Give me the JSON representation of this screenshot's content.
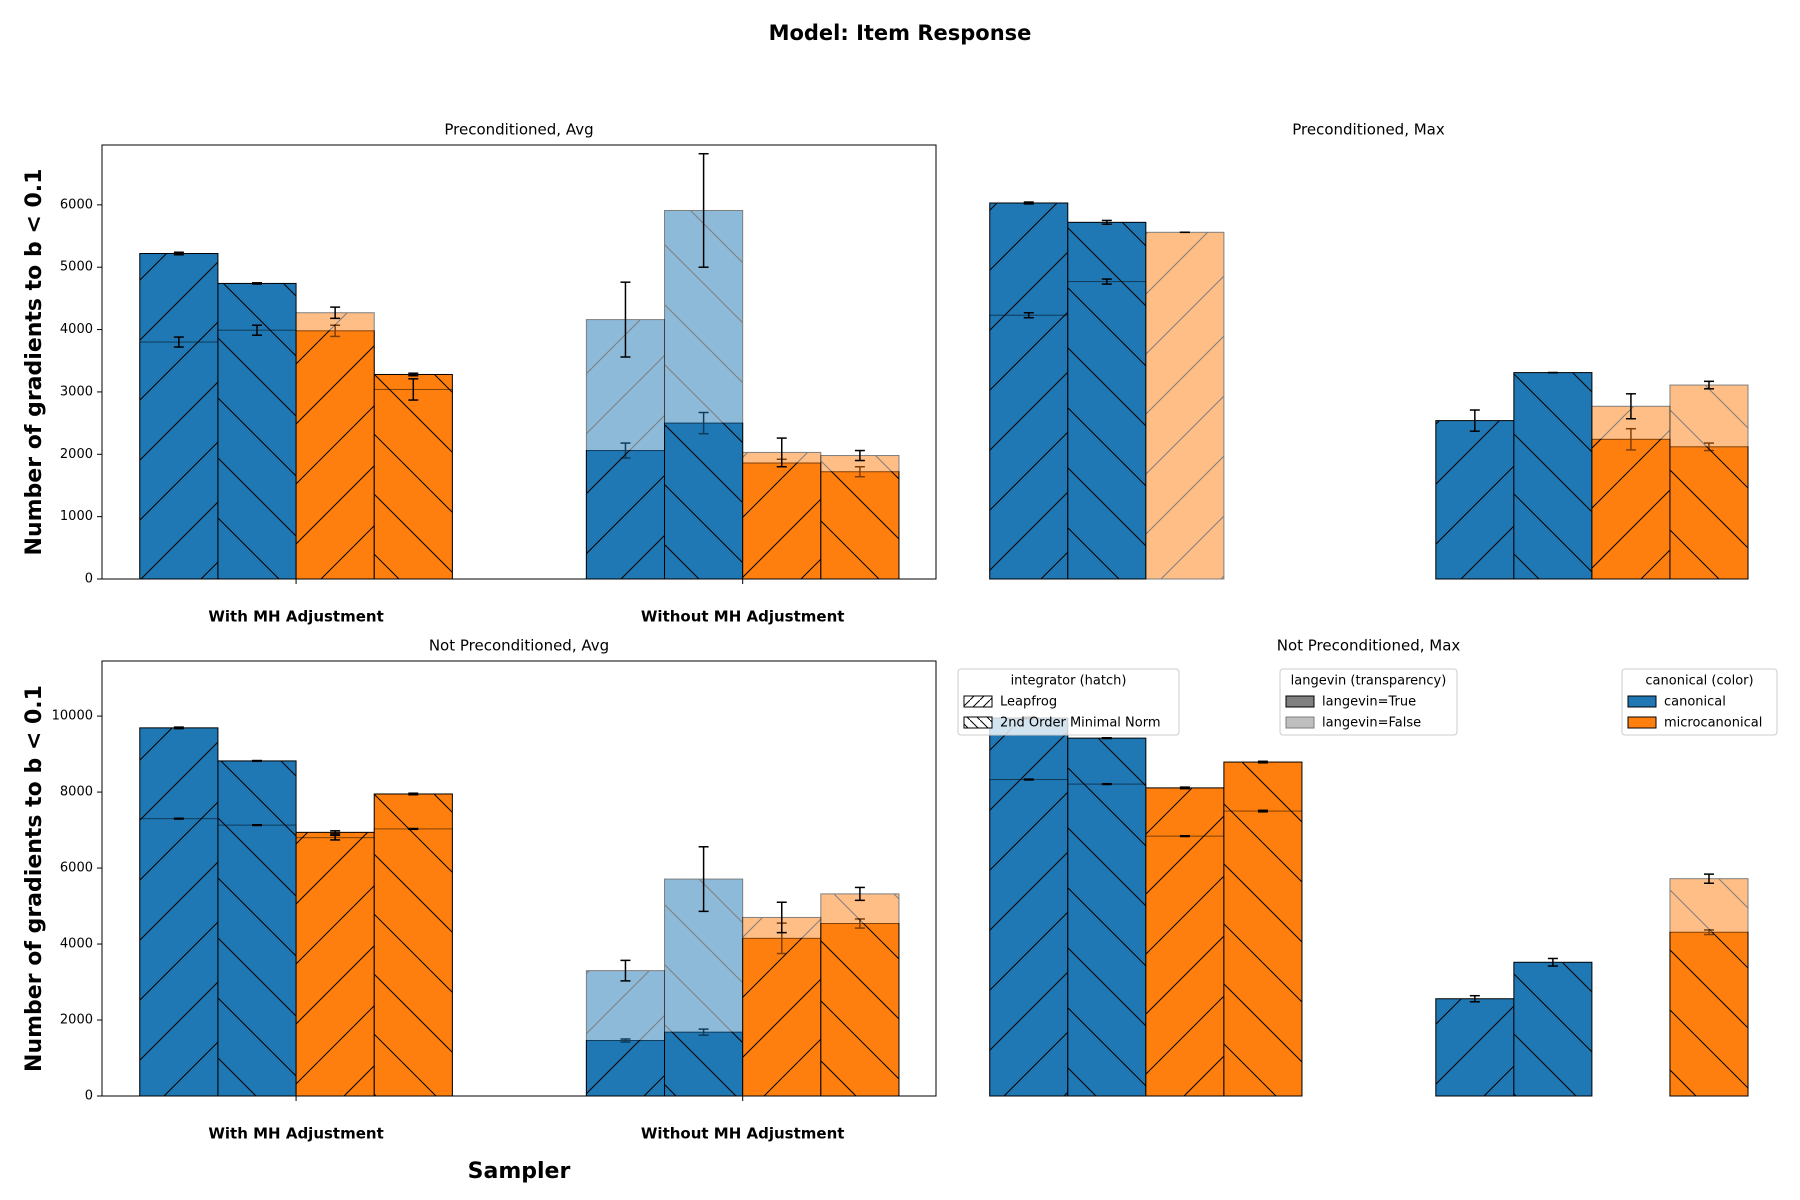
{
  "title": "Model: Item Response",
  "chart_data": [
    {
      "type": "bar",
      "title": "Preconditioned, Avg",
      "ylabel": "Number of gradients to b < 0.1",
      "axis": true,
      "categories": [
        "With MH Adjustment",
        "Without MH Adjustment"
      ],
      "ylim": [
        0,
        6960
      ],
      "yticks": [
        0,
        1000,
        2000,
        3000,
        4000,
        5000,
        6000
      ],
      "series": [
        {
          "color": "#1f77b4",
          "hatch": "/",
          "alpha": 1,
          "values": [
            5220,
            2060
          ],
          "errors": [
            20,
            120
          ]
        },
        {
          "color": "#1f77b4",
          "hatch": "\\",
          "alpha": 1,
          "values": [
            4740,
            2500
          ],
          "errors": [
            10,
            170
          ]
        },
        {
          "color": "#ff7f0e",
          "hatch": "/",
          "alpha": 1,
          "values": [
            3980,
            1860
          ],
          "errors": [
            90,
            60
          ]
        },
        {
          "color": "#ff7f0e",
          "hatch": "\\",
          "alpha": 1,
          "values": [
            3280,
            1720
          ],
          "errors": [
            20,
            80
          ]
        },
        {
          "color": "#1f77b4",
          "hatch": "/",
          "alpha": 0.5,
          "values": [
            3800,
            4160
          ],
          "errors": [
            80,
            600
          ]
        },
        {
          "color": "#1f77b4",
          "hatch": "\\",
          "alpha": 0.5,
          "values": [
            3990,
            5910
          ],
          "errors": [
            80,
            910
          ]
        },
        {
          "color": "#ff7f0e",
          "hatch": "/",
          "alpha": 0.5,
          "values": [
            4270,
            2030
          ],
          "errors": [
            90,
            230
          ]
        },
        {
          "color": "#ff7f0e",
          "hatch": "\\",
          "alpha": 0.5,
          "values": [
            3040,
            1980
          ],
          "errors": [
            170,
            80
          ]
        }
      ]
    },
    {
      "type": "bar",
      "title": "Preconditioned, Max",
      "axis": false,
      "ylim": [
        0,
        6960
      ],
      "series": [
        {
          "color": "#1f77b4",
          "hatch": "/",
          "alpha": 1,
          "values": [
            6030,
            2540
          ],
          "errors": [
            15,
            170
          ]
        },
        {
          "color": "#1f77b4",
          "hatch": "\\",
          "alpha": 1,
          "values": [
            5720,
            3310
          ],
          "errors": [
            30,
            0
          ]
        },
        {
          "color": "#ff7f0e",
          "hatch": "/",
          "alpha": 1,
          "values": [
            null,
            2240
          ],
          "errors": [
            null,
            170
          ]
        },
        {
          "color": "#ff7f0e",
          "hatch": "\\",
          "alpha": 1,
          "values": [
            null,
            2120
          ],
          "errors": [
            null,
            60
          ]
        },
        {
          "color": "#1f77b4",
          "hatch": "/",
          "alpha": 0.5,
          "values": [
            4230,
            null
          ],
          "errors": [
            40,
            null
          ]
        },
        {
          "color": "#1f77b4",
          "hatch": "\\",
          "alpha": 0.5,
          "values": [
            4770,
            null
          ],
          "errors": [
            40,
            null
          ]
        },
        {
          "color": "#ff7f0e",
          "hatch": "/",
          "alpha": 0.5,
          "values": [
            5560,
            2770
          ],
          "errors": [
            0,
            200
          ]
        },
        {
          "color": "#ff7f0e",
          "hatch": "\\",
          "alpha": 0.5,
          "values": [
            null,
            3110
          ],
          "errors": [
            null,
            60
          ]
        }
      ]
    },
    {
      "type": "bar",
      "title": "Not Preconditioned, Avg",
      "ylabel": "Number of gradients to b < 0.1",
      "xlabel": "Sampler",
      "axis": true,
      "categories": [
        "With MH Adjustment",
        "Without MH Adjustment"
      ],
      "ylim": [
        0,
        11450
      ],
      "yticks": [
        0,
        2000,
        4000,
        6000,
        8000,
        10000
      ],
      "series": [
        {
          "color": "#1f77b4",
          "hatch": "/",
          "alpha": 1,
          "values": [
            9690,
            1460
          ],
          "errors": [
            20,
            40
          ]
        },
        {
          "color": "#1f77b4",
          "hatch": "\\",
          "alpha": 1,
          "values": [
            8820,
            1680
          ],
          "errors": [
            10,
            80
          ]
        },
        {
          "color": "#ff7f0e",
          "hatch": "/",
          "alpha": 1,
          "values": [
            6940,
            4150
          ],
          "errors": [
            40,
            400
          ]
        },
        {
          "color": "#ff7f0e",
          "hatch": "\\",
          "alpha": 1,
          "values": [
            7950,
            4540
          ],
          "errors": [
            20,
            120
          ]
        },
        {
          "color": "#1f77b4",
          "hatch": "/",
          "alpha": 0.5,
          "values": [
            7300,
            3300
          ],
          "errors": [
            10,
            270
          ]
        },
        {
          "color": "#1f77b4",
          "hatch": "\\",
          "alpha": 0.5,
          "values": [
            7130,
            5710
          ],
          "errors": [
            10,
            850
          ]
        },
        {
          "color": "#ff7f0e",
          "hatch": "/",
          "alpha": 0.5,
          "values": [
            6800,
            4700
          ],
          "errors": [
            60,
            400
          ]
        },
        {
          "color": "#ff7f0e",
          "hatch": "\\",
          "alpha": 0.5,
          "values": [
            7030,
            5320
          ],
          "errors": [
            10,
            170
          ]
        }
      ]
    },
    {
      "type": "bar",
      "title": "Not Preconditioned, Max",
      "axis": false,
      "ylim": [
        0,
        11450
      ],
      "series": [
        {
          "color": "#1f77b4",
          "hatch": "/",
          "alpha": 1,
          "values": [
            9950,
            2560
          ],
          "errors": [
            20,
            80
          ]
        },
        {
          "color": "#1f77b4",
          "hatch": "\\",
          "alpha": 1,
          "values": [
            9420,
            3520
          ],
          "errors": [
            10,
            100
          ]
        },
        {
          "color": "#ff7f0e",
          "hatch": "/",
          "alpha": 1,
          "values": [
            8110,
            null
          ],
          "errors": [
            20,
            null
          ]
        },
        {
          "color": "#ff7f0e",
          "hatch": "\\",
          "alpha": 1,
          "values": [
            8790,
            4310
          ],
          "errors": [
            20,
            60
          ]
        },
        {
          "color": "#1f77b4",
          "hatch": "/",
          "alpha": 0.5,
          "values": [
            8330,
            null
          ],
          "errors": [
            10,
            null
          ]
        },
        {
          "color": "#1f77b4",
          "hatch": "\\",
          "alpha": 0.5,
          "values": [
            8210,
            null
          ],
          "errors": [
            10,
            null
          ]
        },
        {
          "color": "#ff7f0e",
          "hatch": "/",
          "alpha": 0.5,
          "values": [
            6840,
            null
          ],
          "errors": [
            10,
            null
          ]
        },
        {
          "color": "#ff7f0e",
          "hatch": "\\",
          "alpha": 0.5,
          "values": [
            7500,
            5720
          ],
          "errors": [
            20,
            120
          ]
        }
      ],
      "legends": [
        {
          "title": "integrator (hatch)",
          "entries": [
            {
              "label": "Leapfrog",
              "color": "#ffffff",
              "hatch": "/",
              "alpha": 1
            },
            {
              "label": "2nd Order Minimal Norm",
              "color": "#ffffff",
              "hatch": "\\",
              "alpha": 1
            }
          ]
        },
        {
          "title": "langevin (transparency)",
          "entries": [
            {
              "label": "langevin=True",
              "color": "#808080",
              "alpha": 1
            },
            {
              "label": "langevin=False",
              "color": "#808080",
              "alpha": 0.5
            }
          ]
        },
        {
          "title": "canonical (color)",
          "entries": [
            {
              "label": "canonical",
              "color": "#1f77b4",
              "alpha": 1
            },
            {
              "label": "microcanonical",
              "color": "#ff7f0e",
              "alpha": 1
            }
          ]
        }
      ]
    }
  ]
}
